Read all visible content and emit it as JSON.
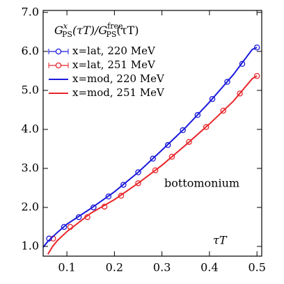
{
  "chart_data": {
    "type": "line",
    "title_parts": [
      "G",
      "x",
      "PS",
      "(τT)/G",
      "free",
      "PS",
      "(τT)"
    ],
    "x_label": "τT",
    "annotation": "bottomonium",
    "xlim": [
      0.05,
      0.51
    ],
    "ylim": [
      0.75,
      7.05
    ],
    "xticks": [
      0.1,
      0.2,
      0.3,
      0.4,
      0.5
    ],
    "yticks": [
      {
        "value": 1,
        "label": "1.0"
      },
      {
        "value": 2,
        "label": "2.0"
      },
      {
        "value": 3,
        "label": "3.0"
      },
      {
        "value": 4,
        "label": "4.0"
      },
      {
        "value": 5,
        "label": "5.0"
      },
      {
        "value": 6,
        "label": "6.0"
      },
      {
        "value": 7,
        "label": "7.0"
      }
    ],
    "legend": "upper left",
    "series": [
      {
        "name": "x=lat, 220 MeV",
        "color": "#1a1adc",
        "style": "points",
        "x": [
          0.0625,
          0.094,
          0.125,
          0.156,
          0.1875,
          0.219,
          0.25,
          0.281,
          0.3125,
          0.344,
          0.375,
          0.406,
          0.4375,
          0.469,
          0.5
        ],
        "values": [
          1.2,
          1.5,
          1.75,
          2.0,
          2.28,
          2.58,
          2.9,
          3.25,
          3.6,
          3.98,
          4.37,
          4.78,
          5.22,
          5.68,
          6.1
        ]
      },
      {
        "name": "x=lat, 251 MeV",
        "color": "#e8262b",
        "style": "points",
        "x": [
          0.071,
          0.107,
          0.143,
          0.179,
          0.214,
          0.25,
          0.286,
          0.321,
          0.357,
          0.393,
          0.429,
          0.464,
          0.5
        ],
        "values": [
          1.2,
          1.5,
          1.75,
          2.02,
          2.3,
          2.62,
          2.95,
          3.3,
          3.68,
          4.06,
          4.48,
          4.92,
          5.37
        ]
      },
      {
        "name": "x=mod, 220 MeV",
        "color": "#1a1adc",
        "style": "line",
        "x": [
          0.05,
          0.06,
          0.08,
          0.1,
          0.15,
          0.2,
          0.25,
          0.3,
          0.35,
          0.4,
          0.45,
          0.49,
          0.5
        ],
        "values": [
          0.98,
          1.13,
          1.36,
          1.57,
          1.97,
          2.4,
          2.9,
          3.47,
          4.05,
          4.7,
          5.4,
          6.05,
          6.1
        ]
      },
      {
        "name": "x=mod, 251 MeV",
        "color": "#e8262b",
        "style": "line",
        "x": [
          0.06,
          0.07,
          0.08,
          0.1,
          0.15,
          0.2,
          0.25,
          0.3,
          0.35,
          0.4,
          0.45,
          0.49,
          0.5
        ],
        "values": [
          0.8,
          1.0,
          1.15,
          1.38,
          1.85,
          2.2,
          2.62,
          3.08,
          3.6,
          4.14,
          4.72,
          5.3,
          5.37
        ]
      }
    ]
  }
}
